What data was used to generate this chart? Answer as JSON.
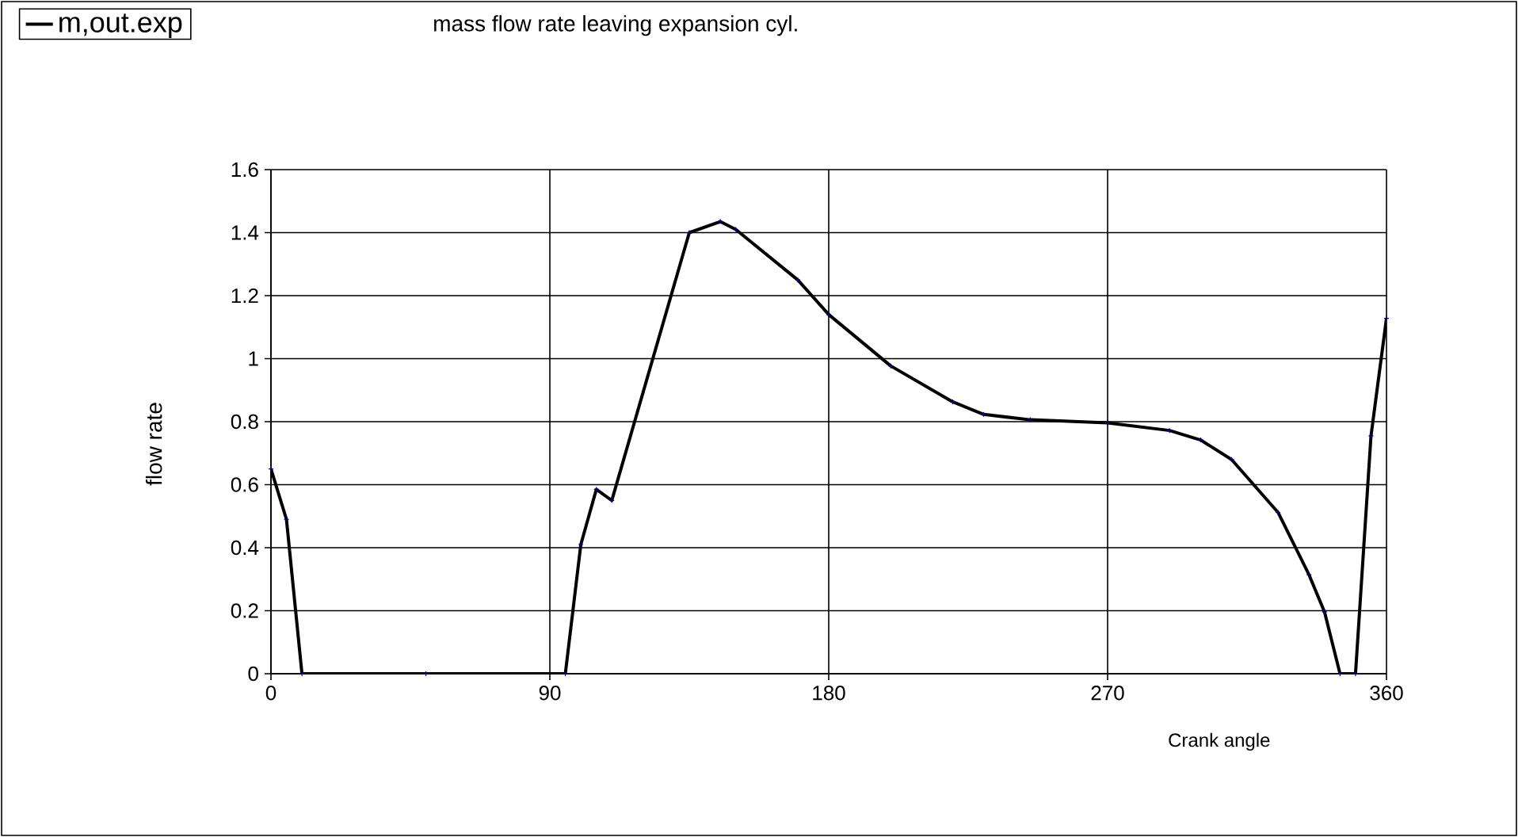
{
  "chart_data": {
    "type": "line",
    "title": "mass flow rate leaving expansion cyl.",
    "xlabel": "Crank angle",
    "ylabel": "flow rate",
    "x": [
      0,
      5,
      10,
      50,
      95,
      100,
      105,
      110,
      135,
      145,
      150,
      170,
      180,
      200,
      220,
      230,
      245,
      270,
      290,
      300,
      310,
      325,
      335,
      340,
      345,
      350,
      355,
      360
    ],
    "series": [
      {
        "name": "m,out.exp",
        "color": "#000000",
        "values": [
          0.65,
          0.49,
          0,
          0,
          0,
          0.41,
          0.585,
          0.55,
          1.4,
          1.435,
          1.41,
          1.25,
          1.14,
          0.977,
          0.863,
          0.823,
          0.806,
          0.796,
          0.772,
          0.742,
          0.68,
          0.512,
          0.314,
          0.196,
          0,
          0,
          0.755,
          1.128
        ]
      }
    ],
    "xlim": [
      0,
      360
    ],
    "ylim": [
      0,
      1.6
    ],
    "xticks": [
      0,
      90,
      180,
      270,
      360
    ],
    "yticks": [
      0,
      0.2,
      0.4,
      0.6,
      0.8,
      1,
      1.2,
      1.4,
      1.6
    ],
    "grid": true,
    "legend": "top left",
    "marker": "cross",
    "line_style": "solid"
  }
}
